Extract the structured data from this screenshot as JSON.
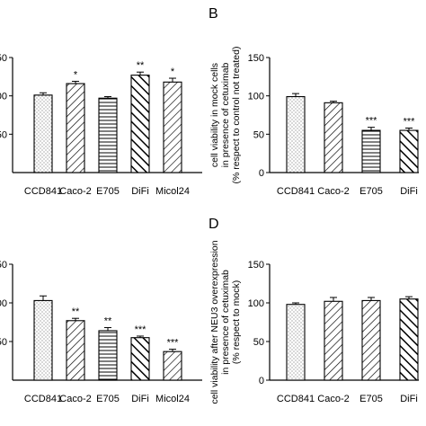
{
  "chart_data": [
    {
      "panel": "",
      "type": "bar",
      "categories": [
        "CCD841",
        "Caco-2",
        "E705",
        "DiFi",
        "Micol24"
      ],
      "values": [
        101,
        116,
        97,
        127,
        118
      ],
      "errors": [
        3,
        3,
        2,
        4,
        5
      ],
      "significance": [
        "",
        "*",
        "",
        "**",
        "*"
      ],
      "patterns": [
        "dots",
        "diag",
        "hlines",
        "diag-heavy",
        "diag"
      ],
      "ylim": [
        0,
        150
      ],
      "yticks": [
        "50",
        "00",
        "50"
      ],
      "ylabel": [],
      "xlabel": "",
      "title": ""
    },
    {
      "panel": "B",
      "type": "bar",
      "categories": [
        "CCD841",
        "Caco-2",
        "E705",
        "DiFi"
      ],
      "values": [
        99,
        91,
        55,
        55
      ],
      "errors": [
        4,
        2,
        4,
        3
      ],
      "significance": [
        "",
        "",
        "***",
        "***"
      ],
      "patterns": [
        "dots",
        "diag",
        "hlines",
        "diag-heavy"
      ],
      "ylim": [
        0,
        150
      ],
      "yticks": [
        "0",
        "50",
        "100",
        "150"
      ],
      "ylabel": [
        "cell viability in mock cells",
        "in presence of cetuximab",
        "(% respect to control not treated)"
      ],
      "xlabel": "",
      "title": ""
    },
    {
      "panel": "",
      "type": "bar",
      "categories": [
        "CCD841",
        "Caco-2",
        "E705",
        "DiFi",
        "Micol24"
      ],
      "values": [
        103,
        77,
        64,
        55,
        37
      ],
      "errors": [
        6,
        3,
        4,
        2,
        3
      ],
      "significance": [
        "",
        "**",
        "**",
        "***",
        "***"
      ],
      "patterns": [
        "dots",
        "diag",
        "hlines",
        "diag-heavy",
        "diag"
      ],
      "ylim": [
        0,
        150
      ],
      "yticks": [
        "50",
        "00",
        "50"
      ],
      "ylabel": [],
      "xlabel": "",
      "title": ""
    },
    {
      "panel": "D",
      "type": "bar",
      "categories": [
        "CCD841",
        "Caco-2",
        "E705",
        "DiFi"
      ],
      "values": [
        98,
        102,
        103,
        105
      ],
      "errors": [
        2,
        5,
        4,
        3
      ],
      "significance": [
        "",
        "",
        "",
        ""
      ],
      "patterns": [
        "dots",
        "diag",
        "diag",
        "diag-heavy"
      ],
      "ylim": [
        0,
        150
      ],
      "yticks": [
        "0",
        "50",
        "100",
        "150"
      ],
      "ylabel": [
        "cell viability after NEU3 overexpression",
        "in presence of cetuximab",
        "(% respect to mock)"
      ],
      "xlabel": "",
      "title": ""
    }
  ]
}
